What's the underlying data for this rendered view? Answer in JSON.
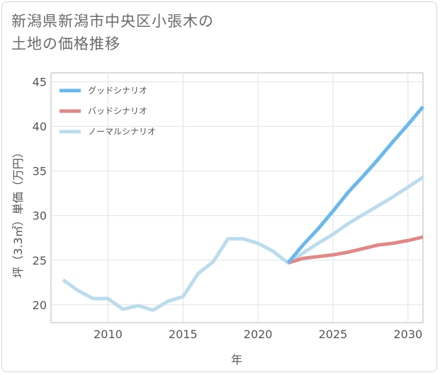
{
  "title_lines": [
    "新潟県新潟市中央区小張木の",
    "土地の価格推移"
  ],
  "chart_data": {
    "type": "line",
    "title": "新潟県新潟市中央区小張木の土地の価格推移",
    "xlabel": "年",
    "ylabel": "坪（3.3㎡）単価（万円）",
    "xlim": [
      2006.2,
      2031
    ],
    "ylim": [
      18,
      46
    ],
    "xticks": [
      2010,
      2015,
      2020,
      2025,
      2030
    ],
    "yticks": [
      20,
      25,
      30,
      35,
      40,
      45
    ],
    "grid": true,
    "legend_position": "top-left",
    "series": [
      {
        "name": "グッドシナリオ",
        "color": "#6cb8ea",
        "x": [
          2022,
          2023,
          2024,
          2025,
          2026,
          2027,
          2028,
          2029,
          2030,
          2031
        ],
        "y": [
          24.7,
          26.7,
          28.5,
          30.5,
          32.6,
          34.4,
          36.3,
          38.3,
          40.2,
          42.2
        ]
      },
      {
        "name": "バッドシナリオ",
        "color": "#dd8a8a",
        "x": [
          2022,
          2023,
          2024,
          2025,
          2026,
          2027,
          2028,
          2029,
          2030,
          2031
        ],
        "y": [
          24.7,
          25.2,
          25.4,
          25.6,
          25.9,
          26.3,
          26.7,
          26.9,
          27.2,
          27.6
        ]
      },
      {
        "name": "ノーマルシナリオ",
        "color": "#bcdcec",
        "x": [
          2007,
          2008,
          2009,
          2010,
          2011,
          2012,
          2013,
          2014,
          2015,
          2016,
          2017,
          2018,
          2019,
          2020,
          2021,
          2022,
          2023,
          2024,
          2025,
          2026,
          2027,
          2028,
          2029,
          2030,
          2031
        ],
        "y": [
          22.8,
          21.6,
          20.7,
          20.7,
          19.5,
          19.9,
          19.4,
          20.4,
          20.9,
          23.5,
          24.8,
          27.4,
          27.4,
          26.9,
          26.0,
          24.7,
          25.8,
          26.9,
          27.9,
          29.1,
          30.1,
          31.1,
          32.1,
          33.2,
          34.3
        ]
      }
    ]
  }
}
